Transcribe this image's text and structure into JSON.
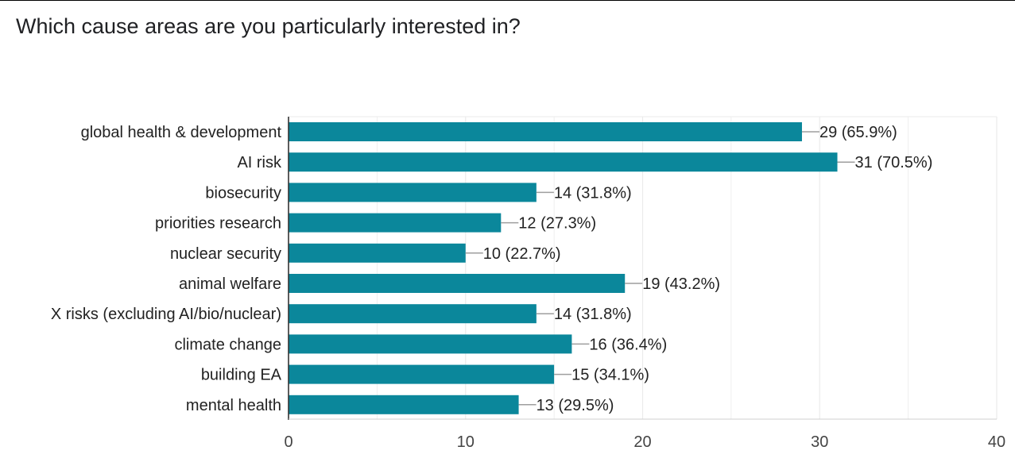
{
  "question": "Which cause areas are you particularly interested in?",
  "colors": {
    "bar": "#0b879b",
    "grid": "#ebebeb",
    "axis": "#333333",
    "leader": "#9e9e9e",
    "label_text": "#222222",
    "tick_text": "#444444"
  },
  "chart_data": {
    "type": "bar",
    "orientation": "horizontal",
    "title": "",
    "xlabel": "",
    "ylabel": "",
    "xlim": [
      0,
      40
    ],
    "x_ticks": [
      0,
      10,
      20,
      30,
      40
    ],
    "grid": true,
    "categories": [
      "global health & development",
      "AI risk",
      "biosecurity",
      "priorities research",
      "nuclear security",
      "animal welfare",
      "X risks (excluding AI/bio/nuclear)",
      "climate change",
      "building EA",
      "mental health"
    ],
    "values": [
      29,
      31,
      14,
      12,
      10,
      19,
      14,
      16,
      15,
      13
    ],
    "data_labels": [
      "29 (65.9%)",
      "31 (70.5%)",
      "14 (31.8%)",
      "12 (27.3%)",
      "10 (22.7%)",
      "19 (43.2%)",
      "14 (31.8%)",
      "16 (36.4%)",
      "15 (34.1%)",
      "13 (29.5%)"
    ]
  }
}
